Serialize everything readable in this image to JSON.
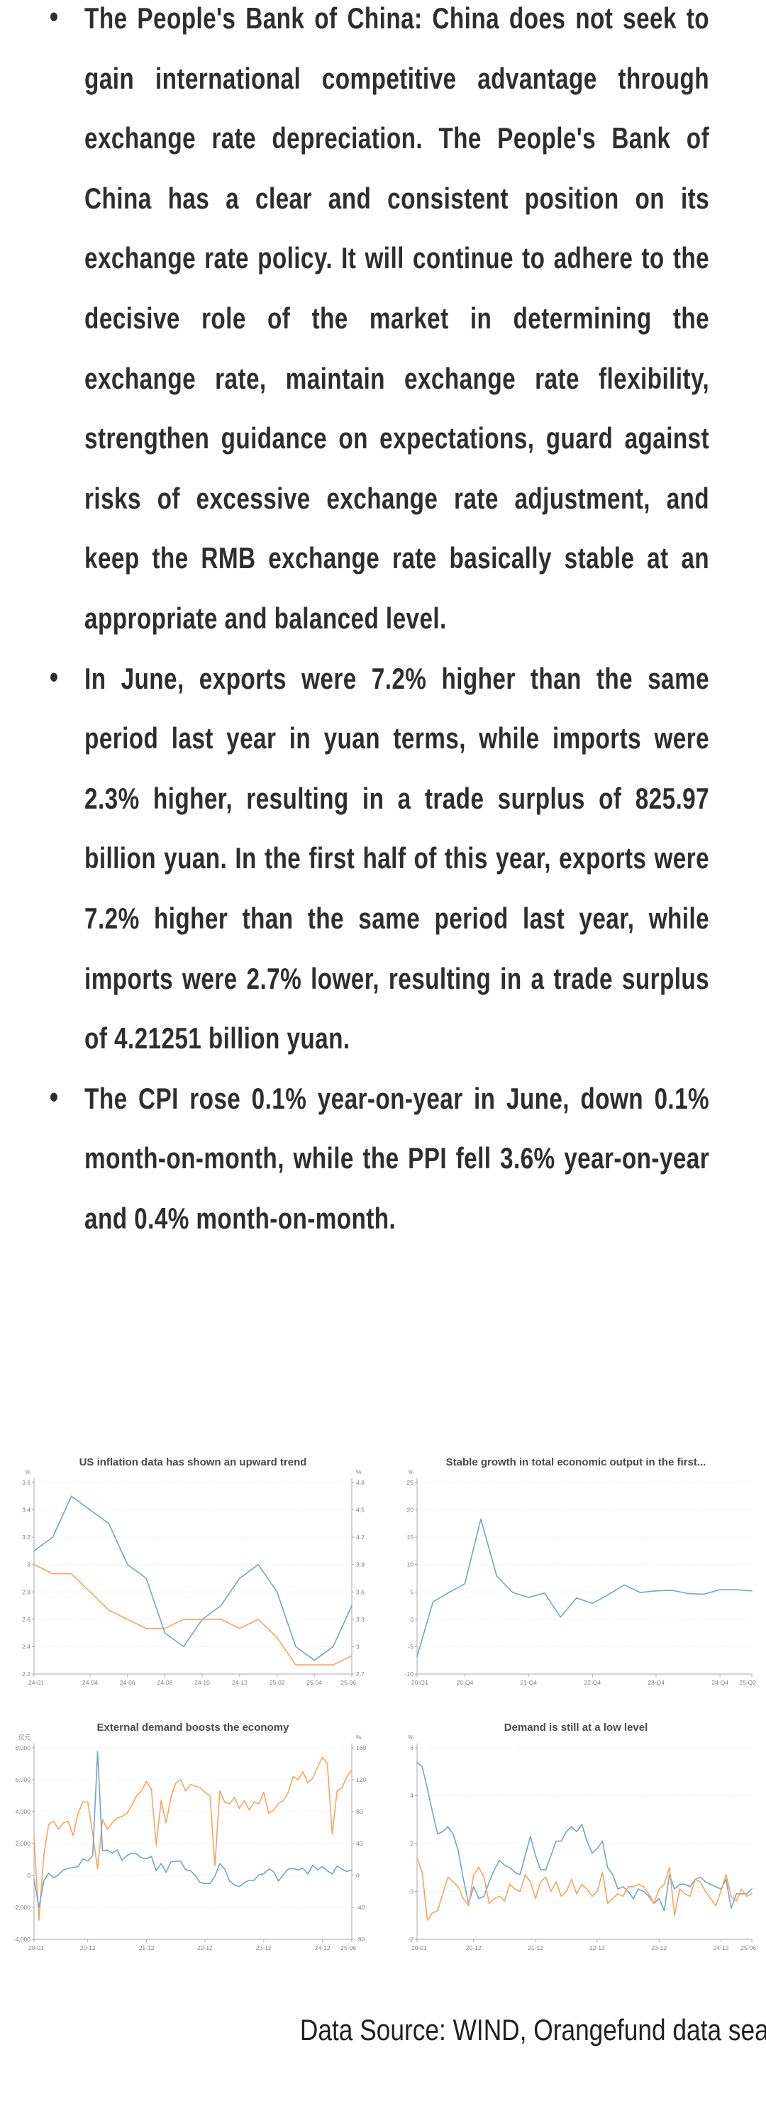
{
  "bullets": [
    {
      "text": "The People's Bank of China: China does not seek to gain international competitive advantage through exchange rate depreciation. The People's Bank of China has a clear and consistent position on its exchange rate policy. It will continue to adhere to the decisive role of the market in determining the exchange rate, maintain exchange rate flexibility, strengthen guidance on expectations, guard against risks of excessive exchange rate adjustment, and keep the RMB exchange rate basically stable at an appropriate and balanced level."
    },
    {
      "text": "In June, exports were 7.2% higher than the same period last year in yuan terms, while imports were 2.3% higher, resulting in a trade surplus of 825.97 billion yuan. In the first half of this year, exports were 7.2% higher than the same period last year, while imports were 2.7% lower, resulting in a trade surplus of 4.21251 billion yuan."
    },
    {
      "text": "The CPI rose 0.1% year-on-year in June, down 0.1% month-on-month, while the PPI fell 3.6% year-on-year and 0.4% month-on-month."
    }
  ],
  "source_line": "Data Source: WIND, Orangefund data sea",
  "colors": {
    "blue": "#73a4c8",
    "orange": "#f6a45e"
  },
  "chart_data": [
    {
      "type": "line",
      "title": "US inflation data has shown an upward trend",
      "legend_position": "none",
      "y_left": {
        "unit": "%",
        "min": 2.2,
        "max": 3.6,
        "ticks": [
          "3.6",
          "3.4",
          "3.2",
          "3",
          "2.8",
          "2.6",
          "2.4",
          "2.2"
        ]
      },
      "y_right": {
        "unit": "%",
        "min": 2.7,
        "max": 4.8,
        "ticks": [
          "4.8",
          "4.5",
          "4.2",
          "3.9",
          "3.6",
          "3.3",
          "3",
          "2.7"
        ]
      },
      "x_ticks": [
        "24-01",
        "24-04",
        "24-06",
        "24-08",
        "24-10",
        "24-12",
        "25-02",
        "25-04",
        "25-06"
      ],
      "x_tick_pos": [
        0,
        0.176,
        0.294,
        0.412,
        0.529,
        0.647,
        0.765,
        0.882,
        1
      ],
      "x": [
        "24-01",
        "24-02",
        "24-03",
        "24-04",
        "24-05",
        "24-06",
        "24-07",
        "24-08",
        "24-09",
        "24-10",
        "24-11",
        "24-12",
        "25-01",
        "25-02",
        "25-03",
        "25-04",
        "25-05",
        "25-06"
      ],
      "series": [
        {
          "name": "blue (left axis)",
          "color": "blue",
          "axis": "left",
          "values": [
            3.1,
            3.2,
            3.5,
            3.4,
            3.3,
            3.0,
            2.9,
            2.5,
            2.4,
            2.6,
            2.7,
            2.9,
            3.0,
            2.8,
            2.4,
            2.3,
            2.4,
            2.7
          ]
        },
        {
          "name": "orange (right axis)",
          "color": "orange",
          "axis": "right",
          "values": [
            3.9,
            3.8,
            3.8,
            3.6,
            3.4,
            3.3,
            3.2,
            3.2,
            3.3,
            3.3,
            3.3,
            3.2,
            3.3,
            3.1,
            2.8,
            2.8,
            2.8,
            2.9
          ]
        }
      ]
    },
    {
      "type": "line",
      "title": "Stable growth in total economic output in the first...",
      "legend_position": "none",
      "y_left": {
        "unit": "%",
        "min": -10,
        "max": 25,
        "ticks": [
          "25",
          "20",
          "15",
          "10",
          "5",
          "0",
          "-5",
          "-10"
        ]
      },
      "x_ticks": [
        "20-Q1",
        "20-Q4",
        "21-Q4",
        "22-Q4",
        "23-Q4",
        "24-Q4",
        "25-Q2"
      ],
      "x_tick_pos": [
        0,
        0.143,
        0.333,
        0.524,
        0.714,
        0.905,
        1
      ],
      "x": [
        "20-Q1",
        "20-Q2",
        "20-Q3",
        "20-Q4",
        "21-Q1",
        "21-Q2",
        "21-Q3",
        "21-Q4",
        "22-Q1",
        "22-Q2",
        "22-Q3",
        "22-Q4",
        "23-Q1",
        "23-Q2",
        "23-Q3",
        "23-Q4",
        "24-Q1",
        "24-Q2",
        "24-Q3",
        "24-Q4",
        "25-Q1",
        "25-Q2"
      ],
      "series": [
        {
          "name": "blue (left axis)",
          "color": "blue",
          "axis": "left",
          "values": [
            -6.8,
            3.2,
            4.9,
            6.5,
            18.3,
            7.9,
            4.9,
            4.0,
            4.8,
            0.4,
            3.9,
            2.9,
            4.5,
            6.3,
            4.9,
            5.2,
            5.3,
            4.7,
            4.6,
            5.4,
            5.4,
            5.2
          ]
        }
      ]
    },
    {
      "type": "line",
      "title": "External demand boosts the economy",
      "legend_position": "none",
      "y_left": {
        "unit": "亿元",
        "min": -4000,
        "max": 8000,
        "ticks": [
          "8,000",
          "6,000",
          "4,000",
          "2,000",
          "0",
          "-2,000",
          "-4,000"
        ]
      },
      "y_right": {
        "unit": "%",
        "min": -80,
        "max": 160,
        "ticks": [
          "160",
          "120",
          "80",
          "40",
          "0",
          "-40",
          "-80"
        ]
      },
      "x_ticks": [
        "20-01",
        "20-12",
        "21-12",
        "22-12",
        "23-12",
        "24-12",
        "25-06"
      ],
      "x_tick_pos": [
        0,
        0.169,
        0.354,
        0.538,
        0.723,
        0.908,
        1
      ],
      "x": [
        "20-01 .. 25-06 monthly"
      ],
      "series": [
        {
          "name": "orange (left axis)",
          "color": "orange",
          "axis": "left",
          "values": [
            2400,
            -2800,
            1300,
            3200,
            3400,
            2900,
            3300,
            3400,
            2500,
            3900,
            4600,
            4600,
            2600,
            400,
            3500,
            2900,
            3300,
            3600,
            3700,
            3900,
            4400,
            5000,
            5300,
            5900,
            5400,
            1900,
            4700,
            3300,
            4900,
            5800,
            6000,
            5300,
            5700,
            5600,
            5500,
            5200,
            5000,
            600,
            5300,
            4600,
            4500,
            4900,
            4200,
            4700,
            4100,
            4600,
            4500,
            5200,
            3900,
            4100,
            4500,
            4700,
            5200,
            6200,
            6000,
            6500,
            5800,
            6100,
            6800,
            7400,
            7000,
            2600,
            5300,
            5500,
            6200,
            6600
          ]
        },
        {
          "name": "blue (right axis)",
          "color": "blue",
          "axis": "right",
          "values": [
            -5,
            -40,
            -7,
            3,
            -3,
            1,
            7,
            9,
            10,
            11,
            21,
            18,
            25,
            155,
            31,
            32,
            28,
            32,
            19,
            25,
            28,
            27,
            22,
            21,
            24,
            6,
            15,
            4,
            17,
            18,
            18,
            7,
            6,
            0,
            -9,
            -10,
            -10,
            -1,
            15,
            8,
            -7,
            -12,
            -14,
            -9,
            -6,
            -6,
            1,
            2,
            8,
            5,
            -7,
            1,
            8,
            9,
            7,
            9,
            2,
            13,
            7,
            11,
            6,
            2,
            12,
            8,
            5,
            7
          ]
        }
      ]
    },
    {
      "type": "line",
      "title": "Demand is still at a low level",
      "legend_position": "none",
      "y_left": {
        "unit": "%",
        "min": -2,
        "max": 6,
        "ticks": [
          "6",
          "4",
          "2",
          "0",
          "-2"
        ]
      },
      "x_ticks": [
        "20-01",
        "20-12",
        "21-12",
        "22-12",
        "23-12",
        "24-12",
        "25-06"
      ],
      "x_tick_pos": [
        0,
        0.169,
        0.354,
        0.538,
        0.723,
        0.908,
        1
      ],
      "x": [
        "20-01 .. 25-06 monthly"
      ],
      "series": [
        {
          "name": "blue (left axis)",
          "color": "blue",
          "axis": "left",
          "values": [
            5.4,
            5.2,
            4.3,
            3.3,
            2.4,
            2.5,
            2.7,
            2.4,
            1.7,
            0.5,
            -0.5,
            0.2,
            -0.3,
            -0.2,
            0.4,
            0.9,
            1.3,
            1.1,
            1.0,
            0.8,
            0.7,
            1.5,
            2.3,
            1.5,
            0.9,
            0.9,
            1.5,
            2.1,
            2.1,
            2.5,
            2.7,
            2.5,
            2.8,
            2.1,
            1.6,
            1.8,
            2.1,
            1.0,
            0.7,
            0.1,
            0.2,
            0.0,
            -0.3,
            0.1,
            0.0,
            -0.2,
            -0.5,
            -0.3,
            -0.8,
            0.7,
            0.1,
            0.3,
            0.3,
            0.2,
            0.5,
            0.6,
            0.4,
            0.3,
            0.2,
            0.1,
            0.5,
            -0.7,
            -0.1,
            -0.1,
            -0.1,
            0.1
          ]
        },
        {
          "name": "orange (left axis)",
          "color": "orange",
          "axis": "left",
          "values": [
            1.4,
            0.8,
            -1.2,
            -0.9,
            -0.8,
            -0.1,
            0.6,
            0.4,
            0.2,
            -0.3,
            -0.6,
            0.7,
            1.0,
            0.6,
            -0.5,
            -0.3,
            -0.2,
            -0.4,
            0.3,
            0.1,
            0.0,
            0.7,
            0.4,
            -0.3,
            0.4,
            0.6,
            0.0,
            0.4,
            -0.2,
            0.0,
            0.5,
            -0.1,
            0.3,
            0.1,
            -0.2,
            0.0,
            0.8,
            -0.5,
            -0.3,
            -0.1,
            -0.2,
            0.2,
            0.2,
            0.3,
            0.2,
            -0.1,
            -0.5,
            0.1,
            0.3,
            1.0,
            -1.0,
            0.1,
            -0.1,
            -0.2,
            0.5,
            0.4,
            0.0,
            -0.3,
            -0.6,
            0.0,
            0.7,
            -0.2,
            -0.4,
            0.1,
            -0.2,
            -0.1
          ]
        }
      ]
    }
  ]
}
